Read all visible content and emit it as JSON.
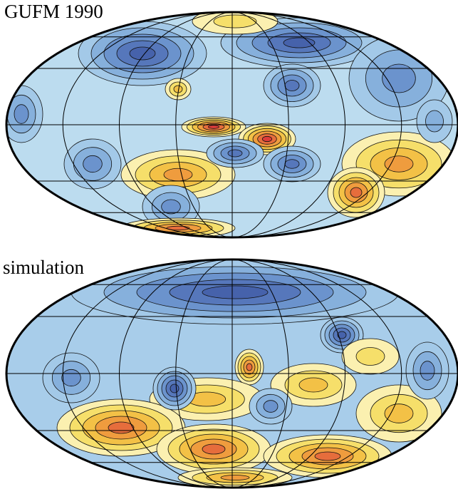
{
  "panels": [
    {
      "label": "GUFM 1990"
    },
    {
      "label": "simulation"
    }
  ]
}
